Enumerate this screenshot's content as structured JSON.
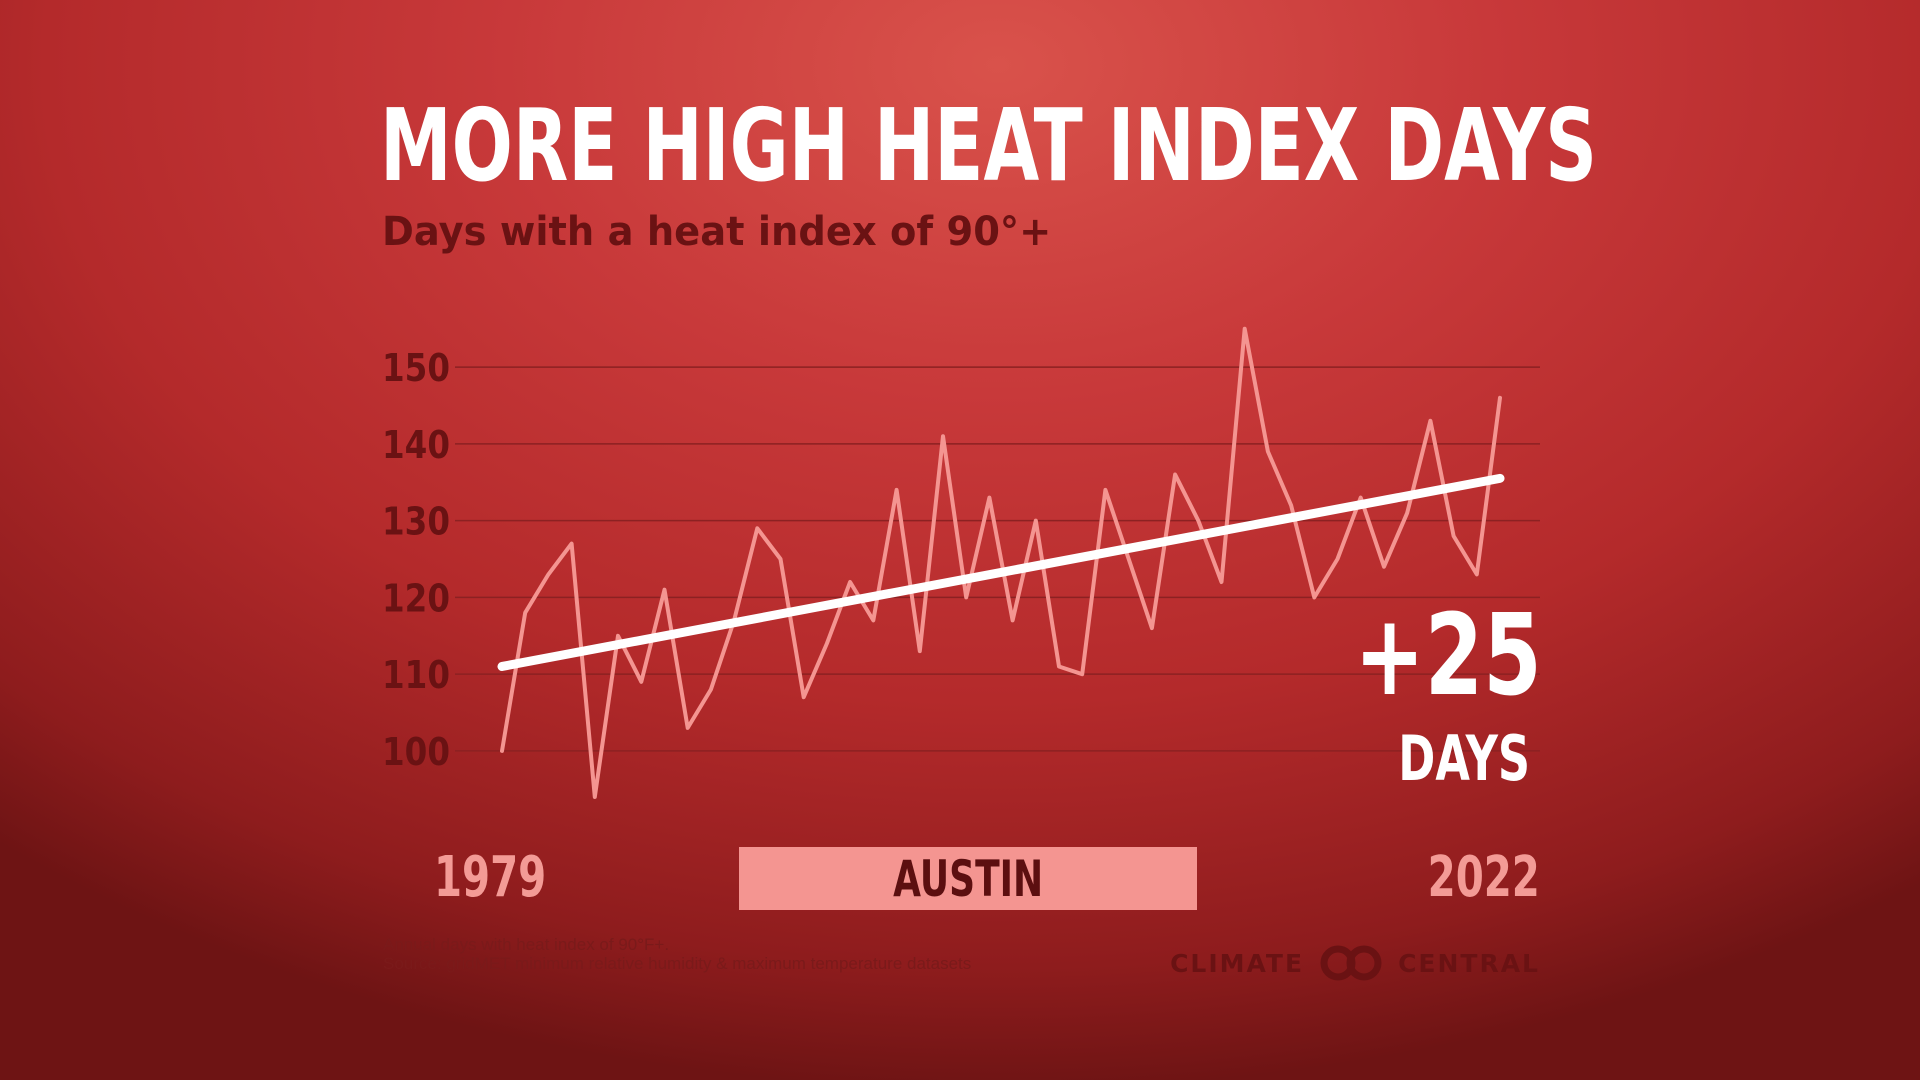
{
  "header": {
    "title": "MORE HIGH HEAT INDEX DAYS",
    "subtitle": "Days with a heat index of 90°+"
  },
  "colors": {
    "background": "#c8393a",
    "raw_line": "#f49591",
    "trend_line": "#ffffff",
    "axis_text": "#6a1213",
    "year_text": "#f39b96",
    "city_box": "#f49591"
  },
  "chart_data": {
    "type": "line",
    "title": "MORE HIGH HEAT INDEX DAYS",
    "subtitle": "Days with a heat index of 90°+",
    "xlabel": "",
    "ylabel": "",
    "x_range": [
      1979,
      2022
    ],
    "ylim": [
      94,
      156
    ],
    "yticks": [
      100,
      110,
      120,
      130,
      140,
      150
    ],
    "grid": true,
    "series": [
      {
        "x": [
          1979,
          1980,
          1981,
          1982,
          1983,
          1984,
          1985,
          1986,
          1987,
          1988,
          1989,
          1990,
          1991,
          1992,
          1993,
          1994,
          1995,
          1996,
          1997,
          1998,
          1999,
          2000,
          2001,
          2002,
          2003,
          2004,
          2005,
          2006,
          2007,
          2008,
          2009,
          2010,
          2011,
          2012,
          2013,
          2014,
          2015,
          2016,
          2017,
          2018,
          2019,
          2020,
          2021,
          2022
        ],
        "values": [
          100,
          118,
          123,
          127,
          94,
          115,
          109,
          121,
          103,
          108,
          117,
          129,
          125,
          107,
          114,
          122,
          117,
          134,
          113,
          141,
          120,
          133,
          117,
          130,
          111,
          110,
          134,
          125,
          116,
          136,
          130,
          122,
          155,
          139,
          132,
          120,
          125,
          133,
          124,
          131,
          143,
          128,
          123,
          146
        ]
      },
      {
        "trend": true,
        "x": [
          1979,
          2022
        ],
        "values": [
          111,
          135.5
        ]
      }
    ],
    "annotations": {
      "change_value": "+25",
      "change_unit": "DAYS"
    },
    "x_start_label": "1979",
    "x_end_label": "2022",
    "location": "AUSTIN"
  },
  "footnote": {
    "line1": "Annual days with heat index of 90°F+.",
    "line2": "Source: gridMET minimum relative humidity & maximum temperature datasets"
  },
  "logo": {
    "left": "CLIMATE",
    "right": "CENTRAL",
    "icon": "linked-rings-logo-icon"
  }
}
